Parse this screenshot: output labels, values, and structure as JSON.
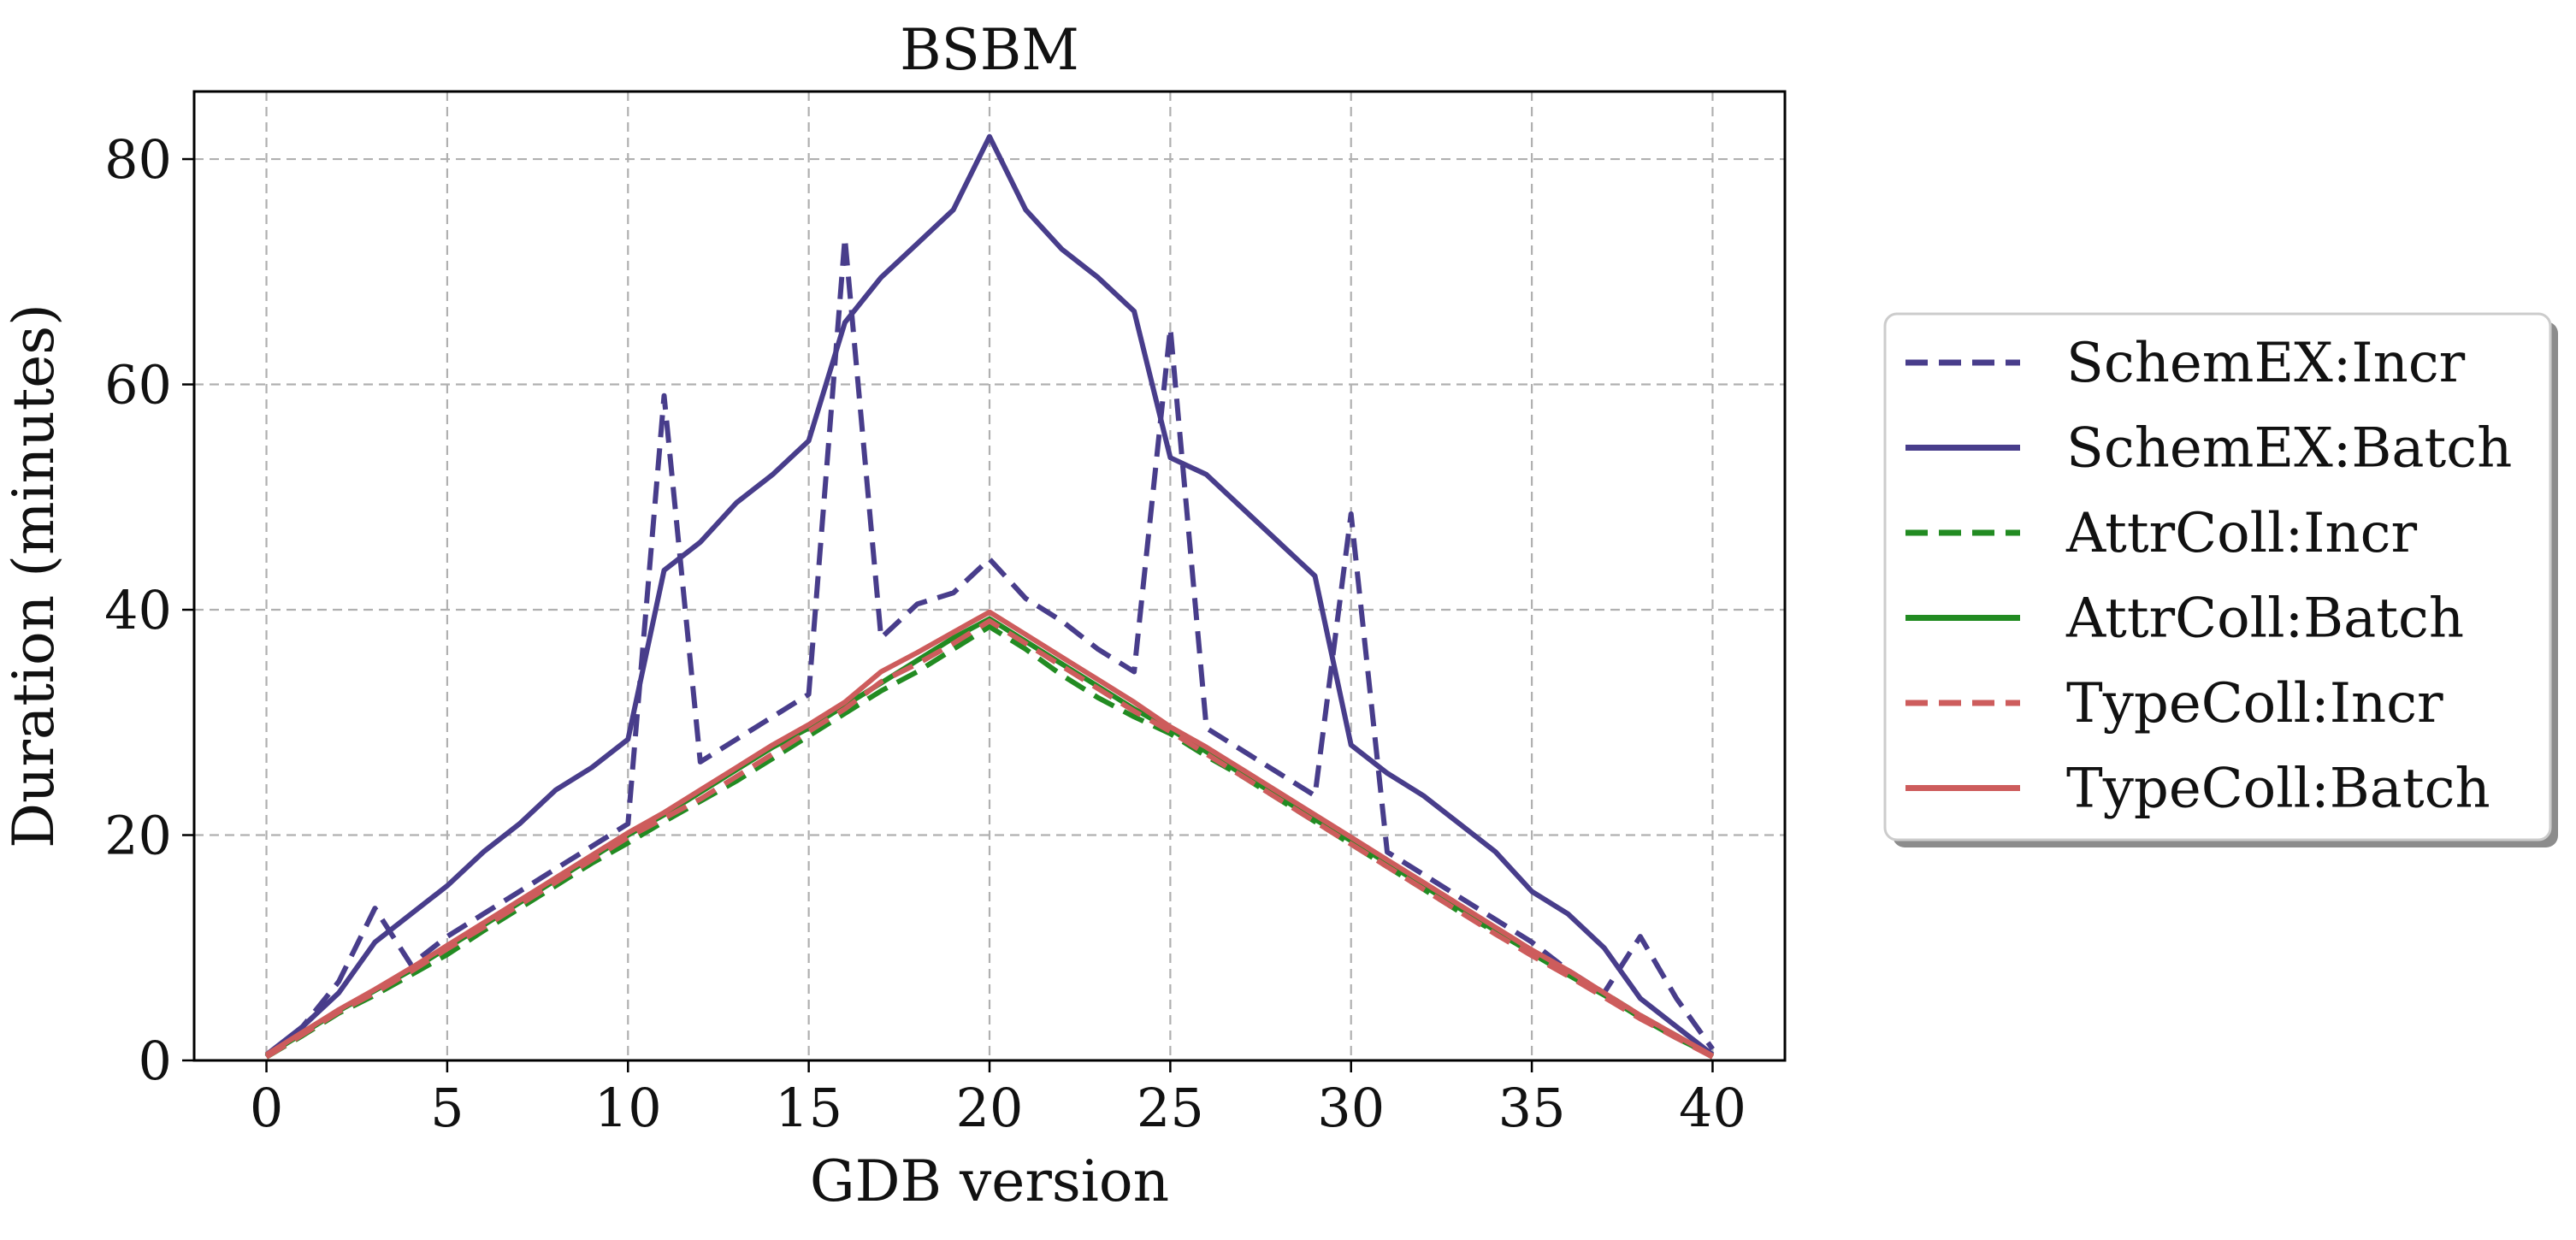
{
  "chart_data": {
    "type": "line",
    "title": "BSBM",
    "xlabel": "GDB version",
    "ylabel": "Duration (minutes)",
    "xlim": [
      -2,
      42
    ],
    "ylim": [
      0,
      86
    ],
    "xticks": [
      0,
      5,
      10,
      15,
      20,
      25,
      30,
      35,
      40
    ],
    "yticks": [
      0,
      20,
      40,
      60,
      80
    ],
    "grid": true,
    "legend_position": "right",
    "series": [
      {
        "name": "SchemEX:Incr",
        "color": "#483d8b",
        "dash": "dashed",
        "x": [
          0,
          1,
          2,
          3,
          4,
          5,
          6,
          7,
          8,
          9,
          10,
          11,
          12,
          13,
          14,
          15,
          16,
          17,
          18,
          19,
          20,
          21,
          22,
          23,
          24,
          25,
          26,
          27,
          28,
          29,
          30,
          31,
          32,
          33,
          34,
          35,
          36,
          37,
          38,
          39,
          40
        ],
        "values": [
          0.3,
          3.0,
          7.0,
          13.5,
          8.5,
          11.0,
          13.0,
          15.0,
          17.0,
          19.0,
          21.0,
          59.0,
          26.5,
          28.5,
          30.5,
          32.5,
          73.0,
          37.5,
          40.5,
          41.5,
          44.5,
          41.0,
          39.0,
          36.5,
          34.5,
          65.0,
          29.5,
          27.5,
          25.5,
          23.5,
          48.5,
          18.5,
          16.5,
          14.5,
          12.5,
          10.5,
          8.0,
          6.0,
          11.0,
          5.5,
          1.0
        ]
      },
      {
        "name": "SchemEX:Batch",
        "color": "#483d8b",
        "dash": "solid",
        "x": [
          0,
          1,
          2,
          3,
          4,
          5,
          6,
          7,
          8,
          9,
          10,
          11,
          12,
          13,
          14,
          15,
          16,
          17,
          18,
          19,
          20,
          21,
          22,
          23,
          24,
          25,
          26,
          27,
          28,
          29,
          30,
          31,
          32,
          33,
          34,
          35,
          36,
          37,
          38,
          39,
          40
        ],
        "values": [
          0.5,
          3.0,
          6.0,
          10.5,
          13.0,
          15.5,
          18.5,
          21.0,
          24.0,
          26.0,
          28.5,
          43.5,
          46.0,
          49.5,
          52.0,
          55.0,
          65.5,
          69.5,
          72.5,
          75.5,
          82.0,
          75.5,
          72.0,
          69.5,
          66.5,
          53.5,
          52.0,
          49.0,
          46.0,
          43.0,
          28.0,
          25.5,
          23.5,
          21.0,
          18.5,
          15.0,
          13.0,
          10.0,
          5.5,
          3.0,
          0.5
        ]
      },
      {
        "name": "AttrColl:Incr",
        "color": "#228b22",
        "dash": "dashed",
        "x": [
          0,
          1,
          2,
          3,
          4,
          5,
          6,
          7,
          8,
          9,
          10,
          11,
          12,
          13,
          14,
          15,
          16,
          17,
          18,
          19,
          20,
          21,
          22,
          23,
          24,
          25,
          26,
          27,
          28,
          29,
          30,
          31,
          32,
          33,
          34,
          35,
          36,
          37,
          38,
          39,
          40
        ],
        "values": [
          0.3,
          2.2,
          4.2,
          5.8,
          7.6,
          9.4,
          11.5,
          13.5,
          15.5,
          17.5,
          19.3,
          21.2,
          23.0,
          24.8,
          26.8,
          28.8,
          30.8,
          32.8,
          34.5,
          36.5,
          38.5,
          36.5,
          34.2,
          32.2,
          30.5,
          29.0,
          27.0,
          25.2,
          23.2,
          21.2,
          19.2,
          17.2,
          15.2,
          13.2,
          11.4,
          9.6,
          7.8,
          6.0,
          4.0,
          2.2,
          0.3
        ]
      },
      {
        "name": "AttrColl:Batch",
        "color": "#228b22",
        "dash": "solid",
        "x": [
          0,
          1,
          2,
          3,
          4,
          5,
          6,
          7,
          8,
          9,
          10,
          11,
          12,
          13,
          14,
          15,
          16,
          17,
          18,
          19,
          20,
          21,
          22,
          23,
          24,
          25,
          26,
          27,
          28,
          29,
          30,
          31,
          32,
          33,
          34,
          35,
          36,
          37,
          38,
          39,
          40
        ],
        "values": [
          0.4,
          2.4,
          4.4,
          6.2,
          8.0,
          10.0,
          12.0,
          14.0,
          16.0,
          18.0,
          20.0,
          21.8,
          23.8,
          25.8,
          27.8,
          29.5,
          31.5,
          33.5,
          35.5,
          37.5,
          39.2,
          37.2,
          35.2,
          33.2,
          31.2,
          29.4,
          27.4,
          25.4,
          23.4,
          21.4,
          19.5,
          17.5,
          15.5,
          13.5,
          11.5,
          9.5,
          7.6,
          5.8,
          3.8,
          2.0,
          0.4
        ]
      },
      {
        "name": "TypeColl:Incr",
        "color": "#cd5c5c",
        "dash": "dashed",
        "x": [
          0,
          1,
          2,
          3,
          4,
          5,
          6,
          7,
          8,
          9,
          10,
          11,
          12,
          13,
          14,
          15,
          16,
          17,
          18,
          19,
          20,
          21,
          22,
          23,
          24,
          25,
          26,
          27,
          28,
          29,
          30,
          31,
          32,
          33,
          34,
          35,
          36,
          37,
          38,
          39,
          40
        ],
        "values": [
          0.3,
          2.3,
          4.3,
          6.0,
          7.9,
          9.9,
          11.8,
          13.8,
          15.8,
          17.8,
          19.8,
          21.5,
          23.2,
          25.2,
          27.2,
          29.2,
          31.2,
          33.6,
          35.2,
          37.0,
          39.0,
          37.0,
          35.0,
          33.0,
          31.0,
          29.2,
          27.2,
          25.2,
          23.2,
          21.2,
          19.2,
          17.2,
          15.2,
          13.2,
          11.2,
          9.3,
          7.5,
          5.6,
          3.7,
          2.0,
          0.3
        ]
      },
      {
        "name": "TypeColl:Batch",
        "color": "#cd5c5c",
        "dash": "solid",
        "x": [
          0,
          1,
          2,
          3,
          4,
          5,
          6,
          7,
          8,
          9,
          10,
          11,
          12,
          13,
          14,
          15,
          16,
          17,
          18,
          19,
          20,
          21,
          22,
          23,
          24,
          25,
          26,
          27,
          28,
          29,
          30,
          31,
          32,
          33,
          34,
          35,
          36,
          37,
          38,
          39,
          40
        ],
        "values": [
          0.5,
          2.5,
          4.5,
          6.3,
          8.2,
          10.2,
          12.2,
          14.2,
          16.2,
          18.2,
          20.2,
          22.0,
          24.0,
          26.0,
          28.0,
          29.8,
          31.8,
          34.5,
          36.2,
          38.0,
          39.8,
          37.8,
          35.8,
          33.8,
          31.8,
          29.6,
          27.8,
          25.8,
          23.8,
          21.8,
          19.8,
          17.8,
          15.8,
          13.8,
          11.8,
          9.8,
          8.0,
          6.0,
          4.0,
          2.2,
          0.4
        ]
      }
    ]
  }
}
